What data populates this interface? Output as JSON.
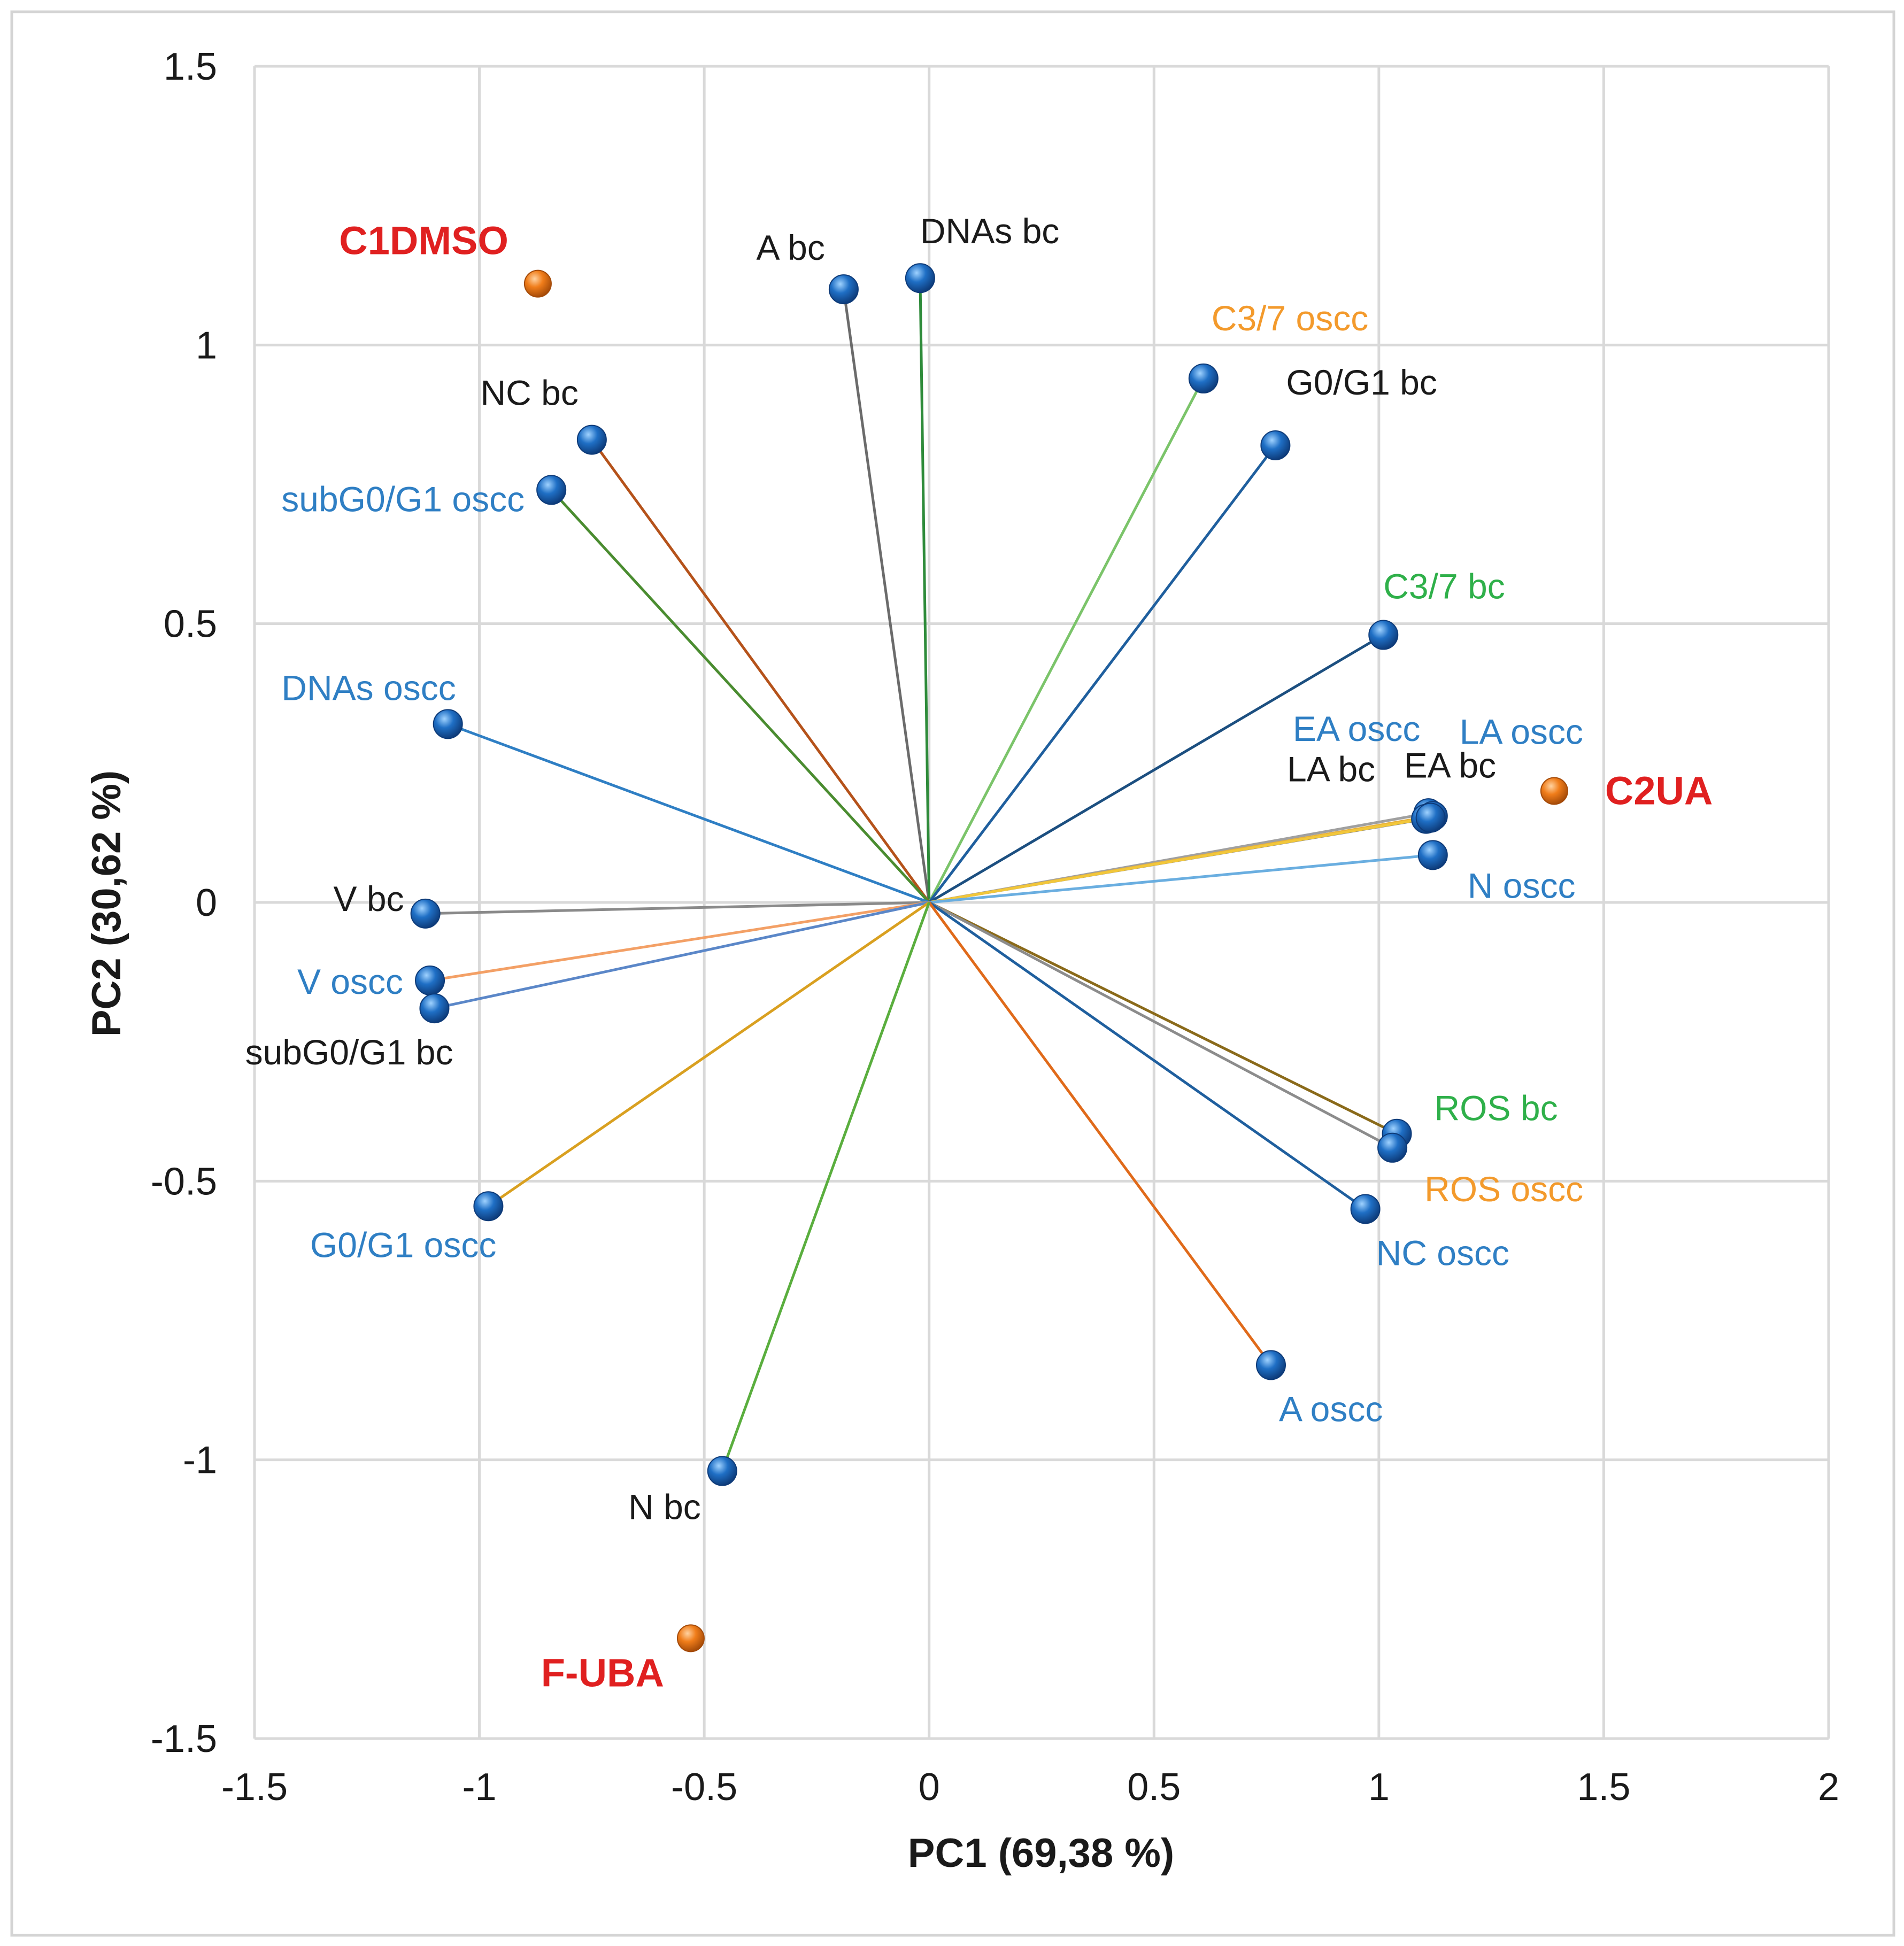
{
  "chart_data": {
    "type": "scatter",
    "subtype": "pca-biplot",
    "xlabel": "PC1 (69,38 %)",
    "ylabel": "PC2 (30,62 %)",
    "xlim": [
      -1.5,
      2
    ],
    "ylim": [
      -1.5,
      1.5
    ],
    "x_ticks": [
      -1.5,
      -1,
      -0.5,
      0,
      0.5,
      1,
      1.5,
      2
    ],
    "x_tick_labels": [
      "-1.5",
      "-1",
      "-0.5",
      "0",
      "0.5",
      "1",
      "1.5",
      "2"
    ],
    "y_ticks": [
      -1.5,
      -1,
      -0.5,
      0,
      0.5,
      1,
      1.5
    ],
    "y_tick_labels": [
      "-1.5",
      "-1",
      "-0.5",
      "0",
      "0.5",
      "1",
      "1.5"
    ],
    "grid": true,
    "marker_color": "#1f6fc5",
    "sample_marker_color": "#f07d1a",
    "variables": [
      {
        "label": "A bc",
        "x": -0.19,
        "y": 1.1,
        "line_color": "#6b6b6b",
        "label_color": "#1a1a1a"
      },
      {
        "label": "DNAs bc",
        "x": -0.02,
        "y": 1.12,
        "line_color": "#2e8b3a",
        "label_color": "#1a1a1a"
      },
      {
        "label": "C3/7 oscc",
        "x": 0.61,
        "y": 0.94,
        "line_color": "#7bc46a",
        "label_color": "#f39a2c"
      },
      {
        "label": "G0/G1 bc",
        "x": 0.77,
        "y": 0.82,
        "line_color": "#1f5f9e",
        "label_color": "#1a1a1a"
      },
      {
        "label": "NC bc",
        "x": -0.75,
        "y": 0.83,
        "line_color": "#b5521a",
        "label_color": "#1a1a1a"
      },
      {
        "label": "subG0/G1 oscc",
        "x": -0.84,
        "y": 0.74,
        "line_color": "#4a8c30",
        "label_color": "#2f7fc4"
      },
      {
        "label": "C3/7 bc",
        "x": 1.01,
        "y": 0.48,
        "line_color": "#1c4f80",
        "label_color": "#2fb04a"
      },
      {
        "label": "DNAs oscc",
        "x": -1.07,
        "y": 0.32,
        "line_color": "#2f7fc4",
        "label_color": "#2f7fc4"
      },
      {
        "label": "EA oscc",
        "x": 1.11,
        "y": 0.16,
        "line_color": "#a0a0a0",
        "label_color": "#2f7fc4"
      },
      {
        "label": "LA oscc",
        "x": 1.12,
        "y": 0.155,
        "line_color": "#e8b13a",
        "label_color": "#2f7fc4"
      },
      {
        "label": "LA bc",
        "x": 1.105,
        "y": 0.15,
        "line_color": "#7a7a7a",
        "label_color": "#1a1a1a"
      },
      {
        "label": "EA bc",
        "x": 1.115,
        "y": 0.152,
        "line_color": "#f2c73a",
        "label_color": "#1a1a1a"
      },
      {
        "label": "N oscc",
        "x": 1.12,
        "y": 0.085,
        "line_color": "#6aaee0",
        "label_color": "#2f7fc4"
      },
      {
        "label": "V bc",
        "x": -1.12,
        "y": -0.02,
        "line_color": "#8a8a8a",
        "label_color": "#1a1a1a"
      },
      {
        "label": "V oscc",
        "x": -1.11,
        "y": -0.14,
        "line_color": "#f3a066",
        "label_color": "#2f7fc4"
      },
      {
        "label": "subG0/G1 bc",
        "x": -1.1,
        "y": -0.19,
        "line_color": "#5b87c8",
        "label_color": "#1a1a1a"
      },
      {
        "label": "ROS bc",
        "x": 1.04,
        "y": -0.415,
        "line_color": "#8a6a1a",
        "label_color": "#2fb04a"
      },
      {
        "label": "ROS oscc",
        "x": 1.03,
        "y": -0.44,
        "line_color": "#8c8c8c",
        "label_color": "#f39a2c"
      },
      {
        "label": "G0/G1 oscc",
        "x": -0.98,
        "y": -0.545,
        "line_color": "#d9a020",
        "label_color": "#2f7fc4"
      },
      {
        "label": "NC oscc",
        "x": 0.97,
        "y": -0.55,
        "line_color": "#1f5f9e",
        "label_color": "#2f7fc4"
      },
      {
        "label": "A oscc",
        "x": 0.76,
        "y": -0.83,
        "line_color": "#e06a1a",
        "label_color": "#2f7fc4"
      },
      {
        "label": "N bc",
        "x": -0.46,
        "y": -1.02,
        "line_color": "#5aae3e",
        "label_color": "#1a1a1a"
      }
    ],
    "samples": [
      {
        "label": "C1DMSO",
        "x": -0.87,
        "y": 1.11,
        "label_color": "#e02020"
      },
      {
        "label": "C2UA",
        "x": 1.39,
        "y": 0.2,
        "label_color": "#e02020"
      },
      {
        "label": "F-UBA",
        "x": -0.53,
        "y": -1.32,
        "label_color": "#e02020"
      }
    ]
  }
}
